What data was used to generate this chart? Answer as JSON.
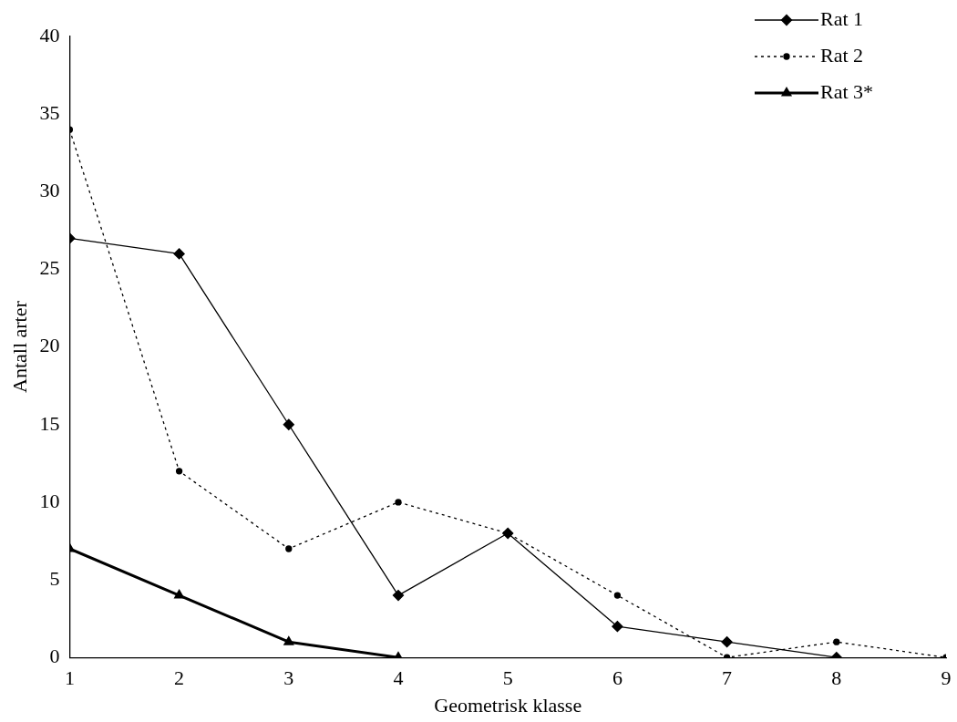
{
  "chart_data": {
    "type": "line",
    "xlabel": "Geometrisk klasse",
    "ylabel": "Antall arter",
    "xlim": [
      1,
      9
    ],
    "xticks": [
      1,
      2,
      3,
      4,
      5,
      6,
      7,
      8,
      9
    ],
    "ylim": [
      0,
      40
    ],
    "yticks": [
      0,
      5,
      10,
      15,
      20,
      25,
      30,
      35,
      40
    ],
    "grid": false,
    "legend": "top right",
    "series": [
      {
        "name": "Rat 1",
        "color": "#000000",
        "marker": "diamond",
        "line_style": "solid",
        "x": [
          1,
          2,
          3,
          4,
          5,
          6,
          7,
          8
        ],
        "values": [
          27,
          26,
          15,
          4,
          8,
          2,
          1,
          0
        ]
      },
      {
        "name": "Rat 2",
        "color": "#000000",
        "marker": "circle",
        "line_style": "dotted",
        "x": [
          1,
          2,
          3,
          4,
          5,
          6,
          7,
          8,
          9
        ],
        "values": [
          34,
          12,
          7,
          10,
          8,
          4,
          0,
          1,
          0
        ]
      },
      {
        "name": "Rat 3*",
        "color": "#000000",
        "marker": "triangle",
        "line_style": "solid",
        "x": [
          1,
          2,
          3,
          4
        ],
        "values": [
          7,
          4,
          1,
          0
        ]
      }
    ]
  }
}
